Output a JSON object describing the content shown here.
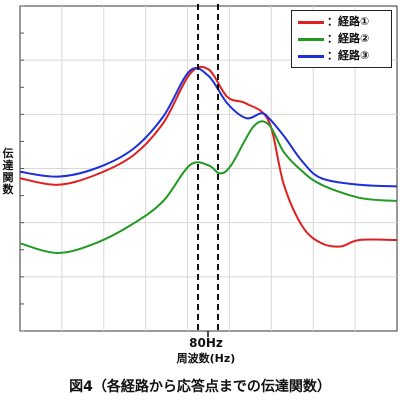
{
  "chart_data": {
    "type": "line",
    "title": "",
    "xlabel": "周波数(Hz)",
    "ylabel": "伝達関数",
    "x_tick_labels": [
      "80Hz"
    ],
    "marker_lines": "dashed vertical lines bracketing 80Hz",
    "grid": true,
    "legend_position": "top-right",
    "axis_ticks_numeric": false,
    "x_note": "values normalised 0-1 across plot width",
    "y_note": "values normalised 0-1 (bottom to top) of plot height",
    "series": [
      {
        "name": "：経路①",
        "color": "#e02020",
        "x": [
          0,
          0.1,
          0.2,
          0.3,
          0.38,
          0.45,
          0.5,
          0.55,
          0.6,
          0.66,
          0.7,
          0.75,
          0.8,
          0.85,
          0.9,
          1.0
        ],
        "y": [
          0.47,
          0.45,
          0.48,
          0.54,
          0.64,
          0.79,
          0.805,
          0.72,
          0.7,
          0.645,
          0.45,
          0.32,
          0.27,
          0.26,
          0.28,
          0.28
        ]
      },
      {
        "name": "：経路②",
        "color": "#229922",
        "x": [
          0,
          0.1,
          0.2,
          0.3,
          0.38,
          0.45,
          0.5,
          0.53,
          0.56,
          0.62,
          0.66,
          0.7,
          0.75,
          0.8,
          0.9,
          1.0
        ],
        "y": [
          0.27,
          0.24,
          0.27,
          0.33,
          0.4,
          0.51,
          0.51,
          0.485,
          0.51,
          0.63,
          0.635,
          0.55,
          0.49,
          0.45,
          0.41,
          0.4
        ]
      },
      {
        "name": "：経路③",
        "color": "#1c2fd8",
        "x": [
          0,
          0.1,
          0.2,
          0.3,
          0.38,
          0.45,
          0.5,
          0.55,
          0.6,
          0.64,
          0.66,
          0.7,
          0.75,
          0.8,
          0.9,
          1.0
        ],
        "y": [
          0.49,
          0.475,
          0.5,
          0.56,
          0.66,
          0.8,
          0.785,
          0.7,
          0.655,
          0.67,
          0.655,
          0.6,
          0.52,
          0.47,
          0.45,
          0.445
        ]
      }
    ]
  },
  "legend": {
    "items": [
      "：経路①",
      "：経路②",
      "：経路③"
    ]
  },
  "axis": {
    "ylabel_chars": [
      "伝",
      "達",
      "関",
      "数"
    ],
    "x_tick": "80Hz",
    "xlabel": "周波数(Hz)"
  },
  "caption": "図4（各経路から応答点までの伝達関数）"
}
